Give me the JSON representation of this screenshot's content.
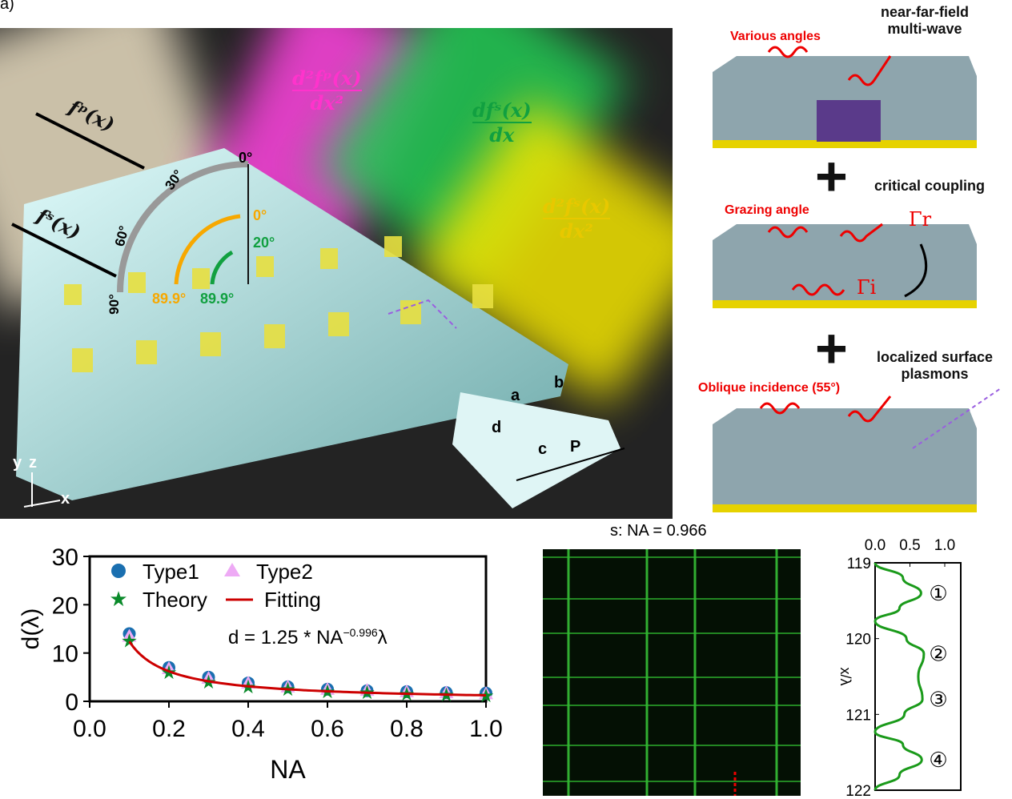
{
  "panel_label": "a)",
  "scene": {
    "beam_labels": {
      "fp": "fᵖ(x)",
      "fs": "fˢ(x)",
      "d2fp_num": "d²fᵖ(x)",
      "d2fp_den": "dx²",
      "dfs_num": "dfˢ(x)",
      "dfs_den": "dx",
      "d2fs_num": "d²fˢ(x)",
      "d2fs_den": "dx²"
    },
    "protractor": {
      "ticks": [
        "0°",
        "30°",
        "60°",
        "90°"
      ],
      "yellow_start": "0°",
      "green_start": "20°",
      "yellow_end": "89.9°",
      "green_end": "89.9°"
    },
    "unit_cell": {
      "a": "a",
      "b": "b",
      "c": "c",
      "d": "d",
      "P": "P"
    },
    "axes": {
      "y": "y",
      "z": "z",
      "x": "x"
    },
    "colors": {
      "pink": "#ff44e0",
      "green": "#22cc55",
      "yellow": "#f2e400",
      "beige": "#e8dcc0"
    }
  },
  "right_panels": {
    "p1": {
      "red": "Various angles",
      "black": "near-far-field\nmulti-wave"
    },
    "plus1": "critical coupling",
    "p2": {
      "red": "Grazing angle",
      "gamma_r": "Γr",
      "gamma_i": "Γi"
    },
    "plus2": "localized surface\nplasmons",
    "p3": {
      "red": "Oblique incidence (55°)"
    }
  },
  "heatmap": {
    "title": "s: NA = 0.966"
  },
  "chart_data": [
    {
      "type": "scatter",
      "title": "",
      "xlabel": "NA",
      "ylabel": "d(λ)",
      "xlim": [
        0,
        1.0
      ],
      "ylim": [
        0,
        30
      ],
      "xticks": [
        "0.0",
        "0.2",
        "0.4",
        "0.6",
        "0.8",
        "1.0"
      ],
      "yticks": [
        "0",
        "10",
        "20",
        "30"
      ],
      "x": [
        0.1,
        0.2,
        0.3,
        0.4,
        0.5,
        0.6,
        0.7,
        0.8,
        0.9,
        1.0
      ],
      "series": [
        {
          "name": "Type1",
          "marker": "circle",
          "color": "#1a6fb0",
          "values": [
            14,
            7,
            5,
            3.8,
            3,
            2.5,
            2.2,
            2,
            1.8,
            1.7
          ]
        },
        {
          "name": "Type2",
          "marker": "triangle",
          "color": "#eeaaf5",
          "values": [
            13.5,
            6.8,
            4.8,
            3.8,
            3,
            2.5,
            2.3,
            2,
            1.8,
            1.6
          ]
        },
        {
          "name": "Theory",
          "marker": "star",
          "color": "#0a8a2a",
          "values": [
            12.5,
            6,
            4,
            3,
            2.5,
            2,
            1.8,
            1.5,
            1.3,
            1.2
          ]
        },
        {
          "name": "Fitting",
          "marker": "line",
          "color": "#cc0000",
          "coef": 1.25,
          "exp": -0.996
        }
      ],
      "annotation": {
        "prefix": "d = 1.25 * NA",
        "sup": "−0.996",
        "suffix": "λ"
      }
    },
    {
      "type": "line",
      "xlabel": "",
      "ylabel": "x/λ",
      "xlim": [
        0,
        1.2
      ],
      "ylim": [
        119,
        122
      ],
      "xticks": [
        "0.0",
        "0.5",
        "1.0"
      ],
      "yticks": [
        "119",
        "120",
        "121",
        "122"
      ],
      "series": [
        {
          "name": "intensity",
          "color": "#1a9a1a",
          "points": [
            [
              119,
              0
            ],
            [
              119.2,
              0.4
            ],
            [
              119.4,
              0.66
            ],
            [
              119.6,
              0.35
            ],
            [
              119.77,
              0
            ],
            [
              120,
              0.45
            ],
            [
              120.2,
              0.7
            ],
            [
              120.5,
              0.62
            ],
            [
              120.8,
              0.68
            ],
            [
              121,
              0.42
            ],
            [
              121.23,
              0
            ],
            [
              121.4,
              0.4
            ],
            [
              121.6,
              0.67
            ],
            [
              121.8,
              0.35
            ],
            [
              122,
              0
            ]
          ]
        }
      ],
      "labels": [
        "①",
        "②",
        "③",
        "④"
      ],
      "label_y": [
        119.4,
        120.2,
        120.8,
        121.6
      ]
    }
  ]
}
